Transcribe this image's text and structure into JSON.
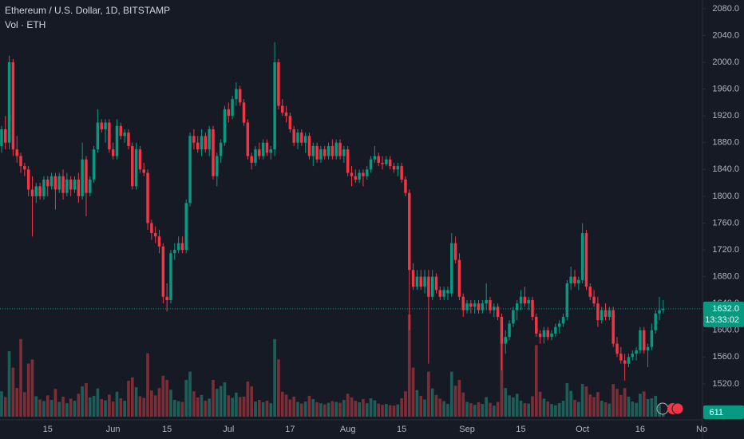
{
  "chart_data": {
    "type": "candlestick",
    "title": "Ethereum / U.S. Dollar, 1D, BITSTAMP",
    "volume_title": "Vol · ETH",
    "up_color": "#089981",
    "down_color": "#f23645",
    "volume_up_color": "#1d5f58",
    "volume_down_color": "#7c2d36",
    "grid": false,
    "ohlc": [
      [
        1875,
        1905,
        1865,
        1900
      ],
      [
        1900,
        1920,
        1870,
        1880
      ],
      [
        1880,
        2010,
        1870,
        2000
      ],
      [
        2000,
        2005,
        1860,
        1870
      ],
      [
        1870,
        1890,
        1850,
        1860
      ],
      [
        1860,
        1865,
        1835,
        1845
      ],
      [
        1845,
        1850,
        1830,
        1840
      ],
      [
        1840,
        1845,
        1800,
        1810
      ],
      [
        1810,
        1830,
        1740,
        1800
      ],
      [
        1800,
        1820,
        1790,
        1815
      ],
      [
        1815,
        1820,
        1795,
        1800
      ],
      [
        1800,
        1830,
        1795,
        1825
      ],
      [
        1825,
        1830,
        1800,
        1815
      ],
      [
        1815,
        1835,
        1810,
        1830
      ],
      [
        1830,
        1835,
        1780,
        1810
      ],
      [
        1810,
        1835,
        1805,
        1830
      ],
      [
        1830,
        1840,
        1795,
        1805
      ],
      [
        1805,
        1835,
        1800,
        1825
      ],
      [
        1825,
        1830,
        1800,
        1810
      ],
      [
        1810,
        1830,
        1805,
        1825
      ],
      [
        1825,
        1835,
        1790,
        1800
      ],
      [
        1800,
        1880,
        1795,
        1855
      ],
      [
        1855,
        1860,
        1770,
        1805
      ],
      [
        1805,
        1830,
        1800,
        1825
      ],
      [
        1825,
        1875,
        1820,
        1870
      ],
      [
        1870,
        1930,
        1865,
        1910
      ],
      [
        1910,
        1915,
        1895,
        1900
      ],
      [
        1900,
        1915,
        1880,
        1910
      ],
      [
        1910,
        1915,
        1865,
        1870
      ],
      [
        1870,
        1880,
        1855,
        1860
      ],
      [
        1860,
        1915,
        1855,
        1905
      ],
      [
        1905,
        1910,
        1885,
        1890
      ],
      [
        1890,
        1900,
        1880,
        1895
      ],
      [
        1895,
        1900,
        1870,
        1875
      ],
      [
        1875,
        1880,
        1810,
        1815
      ],
      [
        1815,
        1880,
        1810,
        1870
      ],
      [
        1870,
        1875,
        1835,
        1840
      ],
      [
        1840,
        1850,
        1830,
        1835
      ],
      [
        1835,
        1840,
        1750,
        1760
      ],
      [
        1760,
        1765,
        1735,
        1745
      ],
      [
        1745,
        1755,
        1730,
        1740
      ],
      [
        1740,
        1750,
        1715,
        1725
      ],
      [
        1725,
        1730,
        1640,
        1650
      ],
      [
        1650,
        1670,
        1628,
        1645
      ],
      [
        1645,
        1720,
        1640,
        1715
      ],
      [
        1715,
        1730,
        1705,
        1720
      ],
      [
        1720,
        1740,
        1715,
        1730
      ],
      [
        1730,
        1740,
        1715,
        1720
      ],
      [
        1720,
        1795,
        1715,
        1790
      ],
      [
        1790,
        1895,
        1785,
        1890
      ],
      [
        1890,
        1900,
        1870,
        1880
      ],
      [
        1880,
        1890,
        1865,
        1870
      ],
      [
        1870,
        1900,
        1860,
        1890
      ],
      [
        1890,
        1895,
        1865,
        1870
      ],
      [
        1870,
        1905,
        1860,
        1900
      ],
      [
        1900,
        1905,
        1825,
        1830
      ],
      [
        1830,
        1865,
        1815,
        1860
      ],
      [
        1860,
        1885,
        1850,
        1880
      ],
      [
        1880,
        1935,
        1875,
        1930
      ],
      [
        1930,
        1940,
        1910,
        1920
      ],
      [
        1920,
        1950,
        1915,
        1945
      ],
      [
        1945,
        1970,
        1935,
        1960
      ],
      [
        1960,
        1965,
        1935,
        1940
      ],
      [
        1940,
        1945,
        1905,
        1910
      ],
      [
        1910,
        1915,
        1855,
        1860
      ],
      [
        1860,
        1865,
        1840,
        1850
      ],
      [
        1850,
        1875,
        1845,
        1870
      ],
      [
        1870,
        1880,
        1855,
        1860
      ],
      [
        1860,
        1885,
        1855,
        1880
      ],
      [
        1880,
        1885,
        1860,
        1865
      ],
      [
        1865,
        1875,
        1855,
        1870
      ],
      [
        1870,
        2030,
        1860,
        2000
      ],
      [
        2000,
        2005,
        1930,
        1935
      ],
      [
        1935,
        1945,
        1920,
        1925
      ],
      [
        1925,
        1935,
        1910,
        1920
      ],
      [
        1920,
        1925,
        1895,
        1900
      ],
      [
        1900,
        1905,
        1875,
        1880
      ],
      [
        1880,
        1900,
        1870,
        1895
      ],
      [
        1895,
        1900,
        1875,
        1880
      ],
      [
        1880,
        1895,
        1865,
        1890
      ],
      [
        1890,
        1895,
        1855,
        1860
      ],
      [
        1860,
        1880,
        1845,
        1875
      ],
      [
        1875,
        1880,
        1850,
        1855
      ],
      [
        1855,
        1875,
        1850,
        1870
      ],
      [
        1870,
        1875,
        1855,
        1860
      ],
      [
        1860,
        1880,
        1855,
        1875
      ],
      [
        1875,
        1885,
        1855,
        1860
      ],
      [
        1860,
        1885,
        1855,
        1880
      ],
      [
        1880,
        1885,
        1855,
        1860
      ],
      [
        1860,
        1875,
        1850,
        1870
      ],
      [
        1870,
        1875,
        1830,
        1835
      ],
      [
        1835,
        1845,
        1815,
        1830
      ],
      [
        1830,
        1840,
        1820,
        1825
      ],
      [
        1825,
        1840,
        1820,
        1835
      ],
      [
        1835,
        1840,
        1815,
        1830
      ],
      [
        1830,
        1845,
        1825,
        1840
      ],
      [
        1840,
        1860,
        1835,
        1855
      ],
      [
        1855,
        1875,
        1850,
        1860
      ],
      [
        1860,
        1865,
        1845,
        1850
      ],
      [
        1850,
        1860,
        1840,
        1848
      ],
      [
        1848,
        1860,
        1845,
        1855
      ],
      [
        1855,
        1860,
        1840,
        1845
      ],
      [
        1845,
        1850,
        1835,
        1840
      ],
      [
        1840,
        1850,
        1830,
        1845
      ],
      [
        1845,
        1850,
        1820,
        1825
      ],
      [
        1825,
        1830,
        1800,
        1805
      ],
      [
        1805,
        1810,
        1600,
        1690
      ],
      [
        1690,
        1700,
        1660,
        1665
      ],
      [
        1665,
        1690,
        1660,
        1680
      ],
      [
        1680,
        1690,
        1660,
        1665
      ],
      [
        1665,
        1690,
        1655,
        1680
      ],
      [
        1680,
        1690,
        1550,
        1650
      ],
      [
        1650,
        1690,
        1645,
        1680
      ],
      [
        1680,
        1685,
        1655,
        1660
      ],
      [
        1660,
        1665,
        1645,
        1650
      ],
      [
        1650,
        1665,
        1645,
        1660
      ],
      [
        1655,
        1665,
        1645,
        1660
      ],
      [
        1655,
        1745,
        1650,
        1730
      ],
      [
        1730,
        1740,
        1700,
        1705
      ],
      [
        1705,
        1715,
        1645,
        1650
      ],
      [
        1650,
        1655,
        1620,
        1630
      ],
      [
        1630,
        1645,
        1625,
        1640
      ],
      [
        1640,
        1645,
        1625,
        1635
      ],
      [
        1635,
        1645,
        1625,
        1640
      ],
      [
        1640,
        1645,
        1625,
        1630
      ],
      [
        1630,
        1645,
        1625,
        1640
      ],
      [
        1640,
        1670,
        1630,
        1645
      ],
      [
        1645,
        1650,
        1625,
        1630
      ],
      [
        1630,
        1640,
        1620,
        1635
      ],
      [
        1635,
        1640,
        1615,
        1620
      ],
      [
        1620,
        1625,
        1540,
        1580
      ],
      [
        1580,
        1600,
        1565,
        1590
      ],
      [
        1590,
        1615,
        1585,
        1610
      ],
      [
        1610,
        1635,
        1605,
        1630
      ],
      [
        1630,
        1645,
        1615,
        1640
      ],
      [
        1640,
        1660,
        1630,
        1650
      ],
      [
        1650,
        1665,
        1635,
        1640
      ],
      [
        1640,
        1650,
        1630,
        1645
      ],
      [
        1645,
        1650,
        1615,
        1620
      ],
      [
        1620,
        1625,
        1590,
        1595
      ],
      [
        1595,
        1600,
        1580,
        1590
      ],
      [
        1590,
        1605,
        1580,
        1600
      ],
      [
        1600,
        1605,
        1585,
        1590
      ],
      [
        1590,
        1600,
        1585,
        1595
      ],
      [
        1595,
        1610,
        1590,
        1605
      ],
      [
        1605,
        1615,
        1595,
        1610
      ],
      [
        1610,
        1625,
        1605,
        1620
      ],
      [
        1620,
        1675,
        1615,
        1670
      ],
      [
        1670,
        1695,
        1660,
        1680
      ],
      [
        1680,
        1690,
        1665,
        1670
      ],
      [
        1670,
        1680,
        1660,
        1675
      ],
      [
        1675,
        1760,
        1670,
        1745
      ],
      [
        1745,
        1750,
        1660,
        1665
      ],
      [
        1665,
        1670,
        1645,
        1650
      ],
      [
        1650,
        1660,
        1635,
        1640
      ],
      [
        1640,
        1650,
        1605,
        1615
      ],
      [
        1615,
        1635,
        1610,
        1630
      ],
      [
        1630,
        1640,
        1615,
        1620
      ],
      [
        1620,
        1635,
        1615,
        1630
      ],
      [
        1630,
        1635,
        1575,
        1580
      ],
      [
        1580,
        1590,
        1560,
        1565
      ],
      [
        1565,
        1575,
        1550,
        1555
      ],
      [
        1555,
        1565,
        1525,
        1550
      ],
      [
        1550,
        1565,
        1545,
        1560
      ],
      [
        1560,
        1570,
        1555,
        1565
      ],
      [
        1565,
        1575,
        1555,
        1570
      ],
      [
        1570,
        1605,
        1565,
        1600
      ],
      [
        1600,
        1605,
        1565,
        1570
      ],
      [
        1570,
        1580,
        1545,
        1575
      ],
      [
        1575,
        1610,
        1570,
        1600
      ],
      [
        1600,
        1630,
        1595,
        1625
      ],
      [
        1625,
        1650,
        1615,
        1630
      ],
      [
        1630,
        1645,
        1625,
        1632
      ]
    ],
    "volume": [
      6200,
      4800,
      16000,
      12000,
      7000,
      19000,
      6000,
      13000,
      14000,
      5000,
      4200,
      3800,
      5200,
      4100,
      6800,
      3600,
      4900,
      3300,
      4400,
      3900,
      5600,
      7400,
      8200,
      4700,
      5100,
      6900,
      4300,
      4000,
      5400,
      3700,
      6100,
      4500,
      3900,
      8800,
      9600,
      7200,
      5000,
      4600,
      15500,
      6400,
      5200,
      7000,
      10000,
      9000,
      6600,
      4100,
      3800,
      3600,
      9000,
      11000,
      6200,
      4700,
      5300,
      3900,
      4400,
      9000,
      6800,
      7500,
      8400,
      5200,
      4600,
      5900,
      4800,
      4900,
      8600,
      7400,
      3700,
      4100,
      3500,
      3900,
      3300,
      19000,
      14000,
      6100,
      5400,
      4200,
      4900,
      3600,
      3200,
      3700,
      5100,
      4300,
      3500,
      3300,
      3000,
      3400,
      3800,
      3600,
      3400,
      4100,
      5600,
      4700,
      3900,
      3500,
      4300,
      3300,
      4500,
      4000,
      3200,
      2900,
      3100,
      2800,
      2700,
      3000,
      4500,
      6200,
      25000,
      12000,
      6500,
      5100,
      4200,
      11000,
      6900,
      5300,
      4400,
      3800,
      3100,
      11000,
      7600,
      9000,
      5900,
      3600,
      3300,
      2900,
      3500,
      3100,
      4800,
      3400,
      2700,
      3600,
      18000,
      7000,
      5200,
      4700,
      5600,
      3900,
      3300,
      3200,
      5000,
      17500,
      6100,
      4400,
      3700,
      3100,
      2800,
      3300,
      3900,
      8200,
      6300,
      4100,
      3600,
      8000,
      7400,
      5400,
      4800,
      6000,
      3900,
      3500,
      3200,
      8000,
      6800,
      5300,
      7000,
      4900,
      3700,
      3400,
      5600,
      6200,
      4300,
      4500,
      5100,
      3000,
      611
    ],
    "price_label": "1632.0",
    "countdown": "13:33:02",
    "xlim": [
      -0.4,
      182.2
    ],
    "xticks": [
      {
        "value": 12,
        "label": "15"
      },
      {
        "value": 29,
        "label": "Jun"
      },
      {
        "value": 43,
        "label": "15"
      },
      {
        "value": 59,
        "label": "Jul"
      },
      {
        "value": 75,
        "label": "17"
      },
      {
        "value": 90,
        "label": "Aug"
      },
      {
        "value": 104,
        "label": "15"
      },
      {
        "value": 121,
        "label": "Sep"
      },
      {
        "value": 135,
        "label": "15"
      },
      {
        "value": 151,
        "label": "Oct"
      },
      {
        "value": 166,
        "label": "16"
      },
      {
        "value": 182,
        "label": "No"
      }
    ],
    "ylim": [
      1471,
      2093
    ],
    "yticks": [
      {
        "value": 2080,
        "label": "2080.0"
      },
      {
        "value": 2040,
        "label": "2040.0"
      },
      {
        "value": 2000,
        "label": "2000.0"
      },
      {
        "value": 1960,
        "label": "1960.0"
      },
      {
        "value": 1920,
        "label": "1920.0"
      },
      {
        "value": 1880,
        "label": "1880.0"
      },
      {
        "value": 1840,
        "label": "1840.0"
      },
      {
        "value": 1800,
        "label": "1800.0"
      },
      {
        "value": 1760,
        "label": "1760.0"
      },
      {
        "value": 1720,
        "label": "1720.0"
      },
      {
        "value": 1680,
        "label": "1680.0"
      },
      {
        "value": 1640,
        "label": "1640.0"
      },
      {
        "value": 1600,
        "label": "1600.0"
      },
      {
        "value": 1560,
        "label": "1560.0"
      },
      {
        "value": 1520,
        "label": "1520.0"
      }
    ],
    "volume_ylim": [
      0,
      25000
    ]
  }
}
